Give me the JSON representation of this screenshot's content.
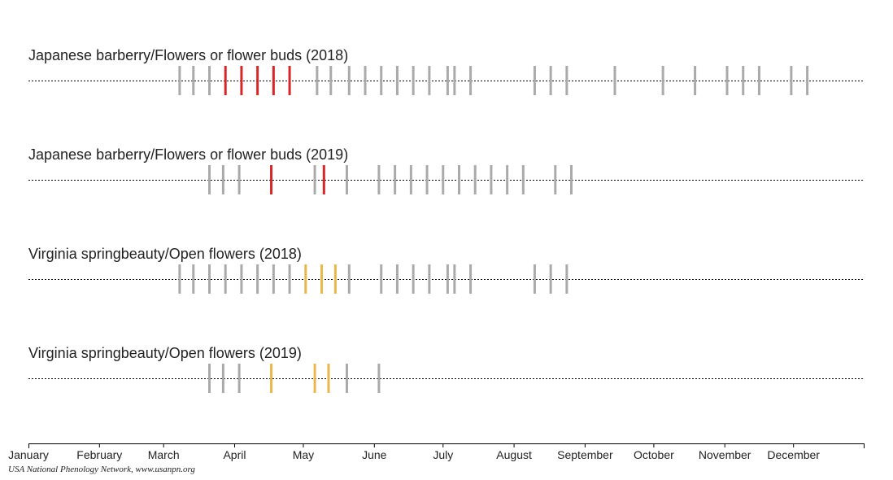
{
  "chart_data": {
    "type": "timeline",
    "x_axis": {
      "domain": [
        "January",
        "December end"
      ],
      "tick_labels": [
        "January",
        "February",
        "March",
        "April",
        "May",
        "June",
        "July",
        "August",
        "September",
        "October",
        "November",
        "December"
      ]
    },
    "series": [
      {
        "title": "Japanese barberry/Flowers or flower buds (2018)",
        "highlight_color": "#d62728",
        "observed_no": [
          "2018-03-08",
          "2018-03-14",
          "2018-03-21",
          "2018-05-07",
          "2018-05-13",
          "2018-05-21",
          "2018-05-28",
          "2018-06-04",
          "2018-06-11",
          "2018-06-18",
          "2018-06-25",
          "2018-07-03",
          "2018-07-06",
          "2018-07-13",
          "2018-08-10",
          "2018-08-17",
          "2018-08-24",
          "2018-09-14",
          "2018-10-05",
          "2018-10-19",
          "2018-11-02",
          "2018-11-09",
          "2018-11-16",
          "2018-11-30",
          "2018-12-07"
        ],
        "observed_yes": [
          "2018-03-28",
          "2018-04-04",
          "2018-04-11",
          "2018-04-18",
          "2018-04-25"
        ]
      },
      {
        "title": "Japanese barberry/Flowers or flower buds (2019)",
        "highlight_color": "#d62728",
        "observed_no": [
          "2019-03-21",
          "2019-03-27",
          "2019-04-03",
          "2019-05-06",
          "2019-05-20",
          "2019-06-03",
          "2019-06-10",
          "2019-06-17",
          "2019-06-24",
          "2019-07-01",
          "2019-07-08",
          "2019-07-15",
          "2019-07-22",
          "2019-07-29",
          "2019-08-05",
          "2019-08-19",
          "2019-08-26"
        ],
        "observed_yes": [
          "2019-04-17",
          "2019-05-10"
        ]
      },
      {
        "title": "Virginia springbeauty/Open flowers (2018)",
        "highlight_color": "#e8b84d",
        "observed_no": [
          "2018-03-08",
          "2018-03-14",
          "2018-03-21",
          "2018-03-28",
          "2018-04-04",
          "2018-04-11",
          "2018-04-18",
          "2018-04-25",
          "2018-05-21",
          "2018-06-04",
          "2018-06-11",
          "2018-06-18",
          "2018-06-25",
          "2018-07-03",
          "2018-07-06",
          "2018-07-13",
          "2018-08-10",
          "2018-08-17",
          "2018-08-24"
        ],
        "observed_yes": [
          "2018-05-02",
          "2018-05-09",
          "2018-05-15"
        ]
      },
      {
        "title": "Virginia springbeauty/Open flowers (2019)",
        "highlight_color": "#e8b84d",
        "observed_no": [
          "2019-03-21",
          "2019-03-27",
          "2019-04-03",
          "2019-05-20",
          "2019-06-03"
        ],
        "observed_yes": [
          "2019-04-17",
          "2019-05-06",
          "2019-05-12"
        ]
      }
    ]
  },
  "credit": "USA National Phenology Network, www.usanpn.org",
  "colors": {
    "observed_no": "#aaaaaa",
    "axis": "#000000",
    "text": "#222222"
  }
}
